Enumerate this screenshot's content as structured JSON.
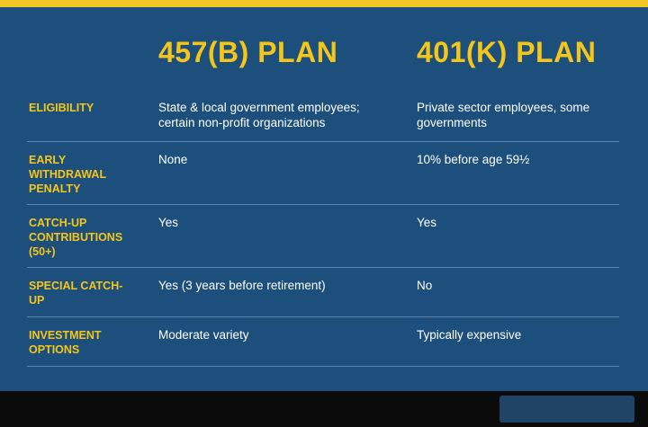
{
  "table": {
    "headers": [
      "457(B) PLAN",
      "401(K) PLAN"
    ],
    "rows": [
      [
        "ELIGIBILITY",
        "State & local government employees; certain non-profit organizations",
        "Private sector employees, some governments"
      ],
      [
        "EARLY WITHDRAWAL PENALTY",
        "None",
        "10% before age 59½"
      ],
      [
        "CATCH-UP CONTRIBUTIONS (50+)",
        "Yes",
        "Yes"
      ],
      [
        "SPECIAL CATCH-UP",
        "Yes (3 years before retirement)",
        "No"
      ],
      [
        "INVESTMENT OPTIONS",
        "Moderate variety",
        "Typically expensive"
      ]
    ]
  }
}
